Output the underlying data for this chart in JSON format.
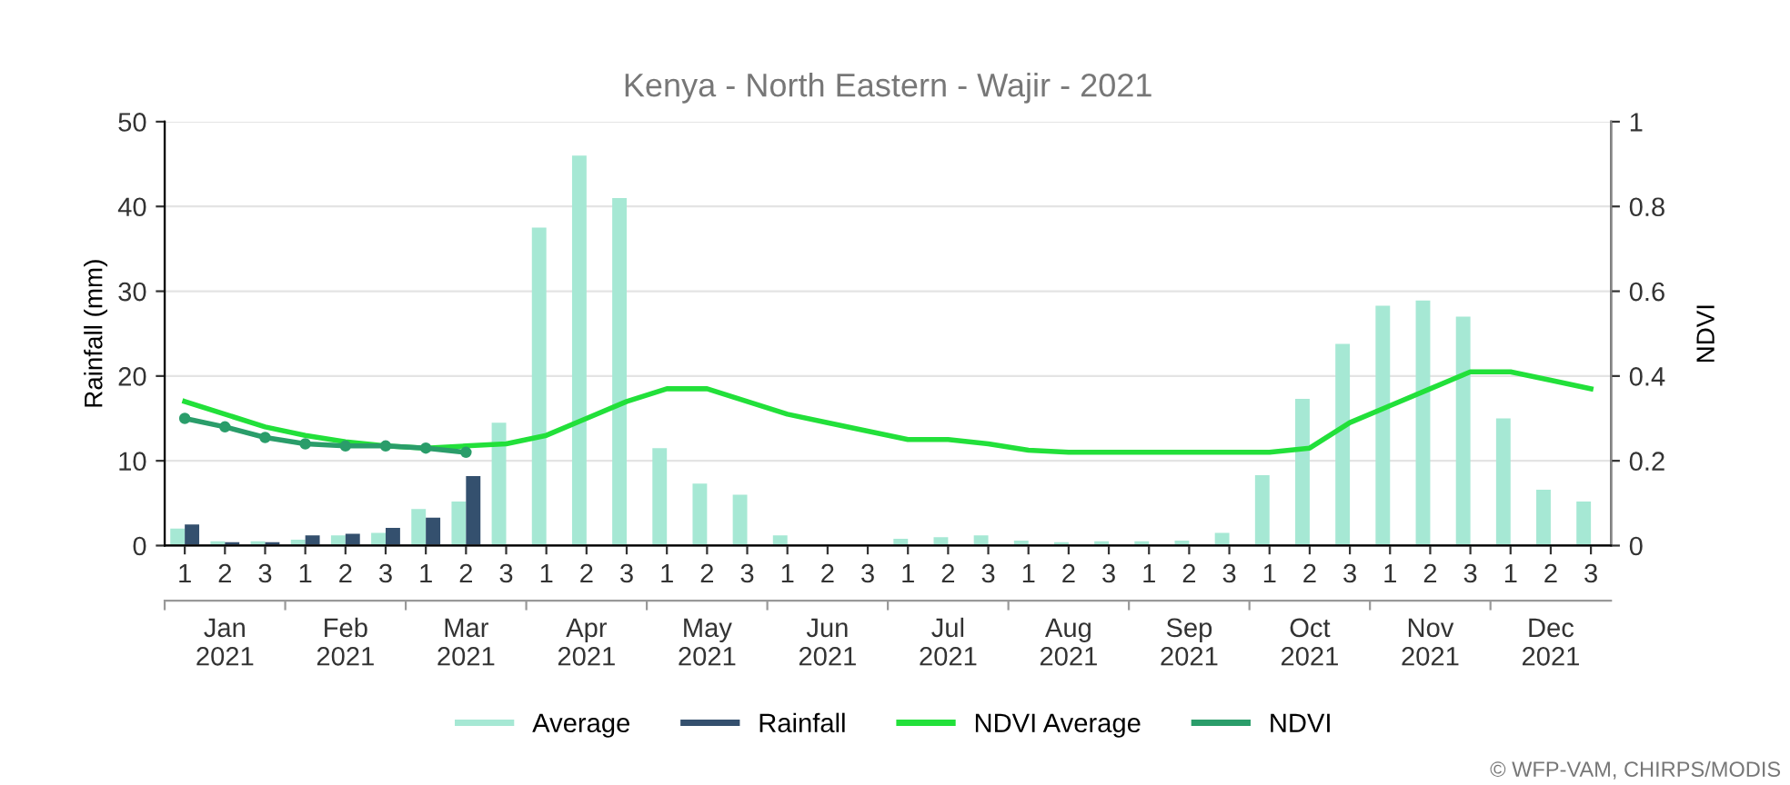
{
  "chart_data": {
    "type": "bar",
    "title": "Kenya - North Eastern - Wajir - 2021",
    "ylabel": "Rainfall (mm)",
    "y2label": "NDVI",
    "categories": [
      "1",
      "2",
      "3",
      "1",
      "2",
      "3",
      "1",
      "2",
      "3",
      "1",
      "2",
      "3",
      "1",
      "2",
      "3",
      "1",
      "2",
      "3",
      "1",
      "2",
      "3",
      "1",
      "2",
      "3",
      "1",
      "2",
      "3",
      "1",
      "2",
      "3",
      "1",
      "2",
      "3",
      "1",
      "2",
      "3"
    ],
    "series": [
      {
        "name": "Average",
        "color": "#a6e8d4",
        "values": [
          2,
          0.5,
          0.5,
          0.7,
          1.2,
          1.5,
          4.3,
          5.2,
          14.5,
          37.5,
          46,
          41,
          11.5,
          7.3,
          6,
          1.2,
          0,
          0,
          0.8,
          1,
          1.2,
          0.6,
          0.4,
          0.5,
          0.5,
          0.6,
          1.5,
          8.3,
          17.3,
          23.8,
          28.3,
          28.9,
          27,
          15,
          6.6,
          5.2
        ]
      },
      {
        "name": "Rainfall",
        "color": "#34506e",
        "values": [
          2.5,
          0.4,
          0.4,
          1.2,
          1.4,
          2.1,
          3.3,
          8.2,
          null,
          null,
          null,
          null,
          null,
          null,
          null,
          null,
          null,
          null,
          null,
          null,
          null,
          null,
          null,
          null,
          null,
          null,
          null,
          null,
          null,
          null,
          null,
          null,
          null,
          null,
          null,
          null
        ]
      },
      {
        "name": "NDVI Average",
        "type": "line",
        "axis": "y2",
        "color": "#22e03a",
        "values": [
          0.34,
          0.31,
          0.28,
          0.26,
          0.245,
          0.235,
          0.23,
          0.235,
          0.24,
          0.26,
          0.3,
          0.34,
          0.37,
          0.37,
          0.34,
          0.31,
          0.29,
          0.27,
          0.25,
          0.25,
          0.24,
          0.225,
          0.22,
          0.22,
          0.22,
          0.22,
          0.22,
          0.22,
          0.23,
          0.29,
          0.33,
          0.37,
          0.41,
          0.41,
          0.39,
          0.37
        ]
      },
      {
        "name": "NDVI",
        "type": "line",
        "axis": "y2",
        "color": "#2a9d6a",
        "marker": "circle",
        "values": [
          0.3,
          0.28,
          0.255,
          0.24,
          0.235,
          0.235,
          0.23,
          0.22,
          null,
          null,
          null,
          null,
          null,
          null,
          null,
          null,
          null,
          null,
          null,
          null,
          null,
          null,
          null,
          null,
          null,
          null,
          null,
          null,
          null,
          null,
          null,
          null,
          null,
          null,
          null,
          null
        ]
      }
    ],
    "ylim": [
      0,
      50
    ],
    "yticks": [
      0,
      10,
      20,
      30,
      40,
      50
    ],
    "y2lim": [
      0,
      1
    ],
    "y2ticks": [
      0,
      0.2,
      0.4,
      0.6,
      0.8,
      1
    ],
    "grid": "y",
    "legend": "bottom",
    "annotations": [
      "Jan\n2021",
      "Feb\n2021",
      "Mar\n2021",
      "Apr\n2021",
      "May\n2021",
      "Jun\n2021",
      "Jul\n2021",
      "Aug\n2021",
      "Sep\n2021",
      "Oct\n2021",
      "Nov\n2021",
      "Dec\n2021",
      "© WFP-VAM, CHIRPS/MODIS"
    ]
  }
}
